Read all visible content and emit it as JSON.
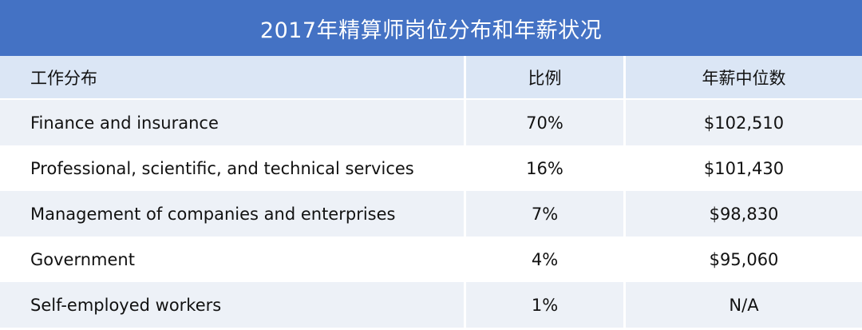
{
  "title": "2017年精算师岗位分布和年薪状况",
  "table": {
    "headers": [
      "工作分布",
      "比例",
      "年薪中位数"
    ],
    "rows": [
      {
        "sector": "Finance and insurance",
        "share": "70%",
        "median_salary": "$102,510"
      },
      {
        "sector": "Professional, scientific, and technical services",
        "share": "16%",
        "median_salary": "$101,430"
      },
      {
        "sector": "Management of companies and enterprises",
        "share": "7%",
        "median_salary": "$98,830"
      },
      {
        "sector": "Government",
        "share": "4%",
        "median_salary": "$95,060"
      },
      {
        "sector": "Self-employed workers",
        "share": "1%",
        "median_salary": "N/A"
      }
    ]
  },
  "colors": {
    "title_background": "#4472c4",
    "header_background": "#dbe6f5",
    "band_background": "#edf1f7"
  }
}
